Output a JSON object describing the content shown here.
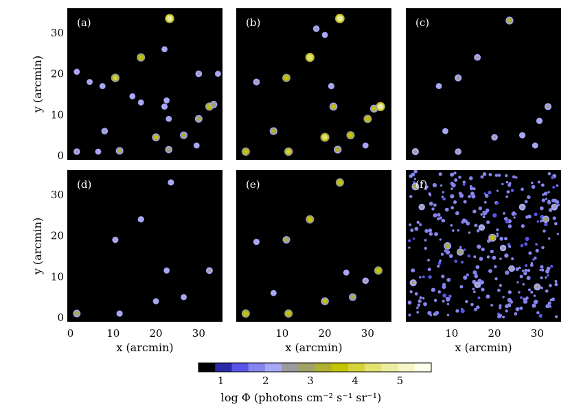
{
  "chart_data": [
    {
      "type": "heatmap",
      "panel_label": "(a)",
      "xlim": [
        0,
        35
      ],
      "ylim": [
        0,
        35
      ],
      "xticks": [],
      "yticks": [
        "0",
        "10",
        "20",
        "30"
      ],
      "xlabel": "",
      "ylabel": "y (arcmin)",
      "sources": [
        {
          "x": 23.2,
          "y": 33.5,
          "logPhi": 4.6
        },
        {
          "x": 1.5,
          "y": 20.5,
          "logPhi": 2.0
        },
        {
          "x": 4.5,
          "y": 18.0,
          "logPhi": 2.0
        },
        {
          "x": 7.5,
          "y": 17.0,
          "logPhi": 2.0
        },
        {
          "x": 10.5,
          "y": 19.0,
          "logPhi": 4.0
        },
        {
          "x": 16.5,
          "y": 24.0,
          "logPhi": 3.8
        },
        {
          "x": 14.5,
          "y": 14.5,
          "logPhi": 2.0
        },
        {
          "x": 22.0,
          "y": 26.0,
          "logPhi": 2.0
        },
        {
          "x": 22.5,
          "y": 13.5,
          "logPhi": 2.0
        },
        {
          "x": 22.0,
          "y": 12.0,
          "logPhi": 2.2
        },
        {
          "x": 30.0,
          "y": 20.0,
          "logPhi": 2.5
        },
        {
          "x": 34.5,
          "y": 20.0,
          "logPhi": 2.0
        },
        {
          "x": 32.5,
          "y": 12.0,
          "logPhi": 3.8
        },
        {
          "x": 33.5,
          "y": 12.5,
          "logPhi": 3.0
        },
        {
          "x": 30.0,
          "y": 9.0,
          "logPhi": 3.2
        },
        {
          "x": 23.0,
          "y": 9.0,
          "logPhi": 2.0
        },
        {
          "x": 8.0,
          "y": 6.0,
          "logPhi": 2.4
        },
        {
          "x": 26.5,
          "y": 5.0,
          "logPhi": 3.2
        },
        {
          "x": 20.0,
          "y": 4.5,
          "logPhi": 3.5
        },
        {
          "x": 1.5,
          "y": 1.0,
          "logPhi": 2.4
        },
        {
          "x": 6.5,
          "y": 1.0,
          "logPhi": 2.0
        },
        {
          "x": 11.5,
          "y": 1.2,
          "logPhi": 3.2
        },
        {
          "x": 23.0,
          "y": 1.5,
          "logPhi": 3.0
        },
        {
          "x": 29.5,
          "y": 2.5,
          "logPhi": 2.0
        },
        {
          "x": 16.5,
          "y": 13.0,
          "logPhi": 2.0
        }
      ]
    },
    {
      "type": "heatmap",
      "panel_label": "(b)",
      "xlim": [
        0,
        35
      ],
      "ylim": [
        0,
        35
      ],
      "xticks": [],
      "yticks": [],
      "xlabel": "",
      "ylabel": "",
      "sources": [
        {
          "x": 23.5,
          "y": 33.5,
          "logPhi": 4.8
        },
        {
          "x": 18.0,
          "y": 31.0,
          "logPhi": 2.4
        },
        {
          "x": 20.0,
          "y": 29.5,
          "logPhi": 2.0
        },
        {
          "x": 4.0,
          "y": 18.0,
          "logPhi": 2.6
        },
        {
          "x": 11.0,
          "y": 19.0,
          "logPhi": 3.8
        },
        {
          "x": 16.5,
          "y": 24.0,
          "logPhi": 4.5
        },
        {
          "x": 21.5,
          "y": 17.0,
          "logPhi": 2.2
        },
        {
          "x": 22.0,
          "y": 12.0,
          "logPhi": 3.6
        },
        {
          "x": 33.0,
          "y": 12.0,
          "logPhi": 4.6
        },
        {
          "x": 31.5,
          "y": 11.5,
          "logPhi": 3.5
        },
        {
          "x": 30.0,
          "y": 9.0,
          "logPhi": 3.8
        },
        {
          "x": 8.0,
          "y": 6.0,
          "logPhi": 3.4
        },
        {
          "x": 26.0,
          "y": 5.0,
          "logPhi": 3.8
        },
        {
          "x": 20.0,
          "y": 4.5,
          "logPhi": 4.4
        },
        {
          "x": 1.5,
          "y": 1.0,
          "logPhi": 3.8
        },
        {
          "x": 11.5,
          "y": 1.0,
          "logPhi": 4.0
        },
        {
          "x": 23.0,
          "y": 1.5,
          "logPhi": 3.4
        },
        {
          "x": 29.5,
          "y": 2.5,
          "logPhi": 2.0
        }
      ]
    },
    {
      "type": "heatmap",
      "panel_label": "(c)",
      "xlim": [
        0,
        35
      ],
      "ylim": [
        0,
        35
      ],
      "xticks": [],
      "yticks": [],
      "xlabel": "",
      "ylabel": "",
      "sources": [
        {
          "x": 23.5,
          "y": 33.0,
          "logPhi": 3.4
        },
        {
          "x": 16.0,
          "y": 24.0,
          "logPhi": 2.6
        },
        {
          "x": 11.5,
          "y": 19.0,
          "logPhi": 2.8
        },
        {
          "x": 7.0,
          "y": 17.0,
          "logPhi": 2.0
        },
        {
          "x": 32.5,
          "y": 12.0,
          "logPhi": 2.8
        },
        {
          "x": 30.5,
          "y": 8.5,
          "logPhi": 2.2
        },
        {
          "x": 20.0,
          "y": 4.5,
          "logPhi": 2.4
        },
        {
          "x": 26.5,
          "y": 5.0,
          "logPhi": 2.2
        },
        {
          "x": 8.5,
          "y": 6.0,
          "logPhi": 2.0
        },
        {
          "x": 11.5,
          "y": 1.0,
          "logPhi": 2.4
        },
        {
          "x": 1.5,
          "y": 1.0,
          "logPhi": 2.8
        },
        {
          "x": 29.5,
          "y": 2.5,
          "logPhi": 2.0
        }
      ]
    },
    {
      "type": "heatmap",
      "panel_label": "(d)",
      "xlim": [
        0,
        35
      ],
      "ylim": [
        0,
        35
      ],
      "xticks": [
        "0",
        "10",
        "20",
        "30"
      ],
      "yticks": [
        "0",
        "10",
        "20",
        "30"
      ],
      "xlabel": "",
      "ylabel": "y (arcmin)",
      "sources": [
        {
          "x": 23.5,
          "y": 33.0,
          "logPhi": 2.2
        },
        {
          "x": 16.5,
          "y": 24.0,
          "logPhi": 2.2
        },
        {
          "x": 10.5,
          "y": 19.0,
          "logPhi": 2.2
        },
        {
          "x": 22.5,
          "y": 11.5,
          "logPhi": 2.0
        },
        {
          "x": 32.5,
          "y": 11.5,
          "logPhi": 2.6
        },
        {
          "x": 26.5,
          "y": 5.0,
          "logPhi": 2.0
        },
        {
          "x": 20.0,
          "y": 4.0,
          "logPhi": 2.0
        },
        {
          "x": 11.5,
          "y": 1.0,
          "logPhi": 2.2
        },
        {
          "x": 1.5,
          "y": 1.0,
          "logPhi": 3.2
        }
      ]
    },
    {
      "type": "heatmap",
      "panel_label": "(e)",
      "xlim": [
        0,
        35
      ],
      "ylim": [
        0,
        35
      ],
      "xticks": [
        "10",
        "20",
        "30"
      ],
      "yticks": [],
      "xlabel": "x (arcmin)",
      "ylabel": "",
      "sources": [
        {
          "x": 23.5,
          "y": 33.0,
          "logPhi": 3.8
        },
        {
          "x": 16.5,
          "y": 24.0,
          "logPhi": 3.8
        },
        {
          "x": 4.0,
          "y": 18.5,
          "logPhi": 2.2
        },
        {
          "x": 11.0,
          "y": 19.0,
          "logPhi": 3.2
        },
        {
          "x": 32.5,
          "y": 11.5,
          "logPhi": 3.8
        },
        {
          "x": 29.5,
          "y": 9.0,
          "logPhi": 2.4
        },
        {
          "x": 25.0,
          "y": 11.0,
          "logPhi": 2.0
        },
        {
          "x": 8.0,
          "y": 6.0,
          "logPhi": 2.0
        },
        {
          "x": 26.5,
          "y": 5.0,
          "logPhi": 3.2
        },
        {
          "x": 20.0,
          "y": 4.0,
          "logPhi": 3.5
        },
        {
          "x": 1.5,
          "y": 1.0,
          "logPhi": 3.8
        },
        {
          "x": 11.5,
          "y": 1.0,
          "logPhi": 3.8
        }
      ]
    },
    {
      "type": "heatmap",
      "panel_label": "(f)",
      "xlim": [
        0,
        35
      ],
      "ylim": [
        0,
        35
      ],
      "xticks": [
        "10",
        "20",
        "30"
      ],
      "yticks": [],
      "xlabel": "x (arcmin)",
      "ylabel": "",
      "sources": [
        {
          "x": 19.5,
          "y": 19.5,
          "logPhi": 3.6
        },
        {
          "x": 1.5,
          "y": 32.0,
          "logPhi": 3.2
        },
        {
          "x": 9.0,
          "y": 17.5,
          "logPhi": 3.2
        },
        {
          "x": 12.0,
          "y": 16.0,
          "logPhi": 3.0
        },
        {
          "x": 32.0,
          "y": 24.0,
          "logPhi": 3.0
        },
        {
          "x": 1.0,
          "y": 8.5,
          "logPhi": 2.8
        },
        {
          "x": 30.0,
          "y": 7.5,
          "logPhi": 2.8
        },
        {
          "x": 26.5,
          "y": 27.0,
          "logPhi": 2.6
        },
        {
          "x": 34.0,
          "y": 27.0,
          "logPhi": 2.6
        },
        {
          "x": 17.0,
          "y": 22.0,
          "logPhi": 2.4
        },
        {
          "x": 22.0,
          "y": 17.0,
          "logPhi": 2.4
        },
        {
          "x": 24.0,
          "y": 12.0,
          "logPhi": 2.4
        },
        {
          "x": 3.0,
          "y": 27.0,
          "logPhi": 2.4
        },
        {
          "x": 16.0,
          "y": 8.0,
          "logPhi": 2.4
        }
      ],
      "background_field": "dense"
    }
  ],
  "axes": {
    "xlabel": "x (arcmin)",
    "ylabel": "y (arcmin)"
  },
  "colorbar": {
    "ticks": [
      "1",
      "2",
      "3",
      "4",
      "5"
    ],
    "tick_values": [
      1,
      2,
      3,
      4,
      5
    ],
    "range": [
      0.5,
      5.7
    ],
    "colors": [
      "#000000",
      "#2a2aa8",
      "#5757e6",
      "#8585ee",
      "#a7a7f5",
      "#9c9c9c",
      "#a2a266",
      "#b0b030",
      "#c4c400",
      "#d4d43a",
      "#e2e270",
      "#ececa0",
      "#f6f6c8",
      "#ffffee"
    ],
    "label": "log Φ (photons cm⁻² s⁻¹ sr⁻¹)"
  }
}
